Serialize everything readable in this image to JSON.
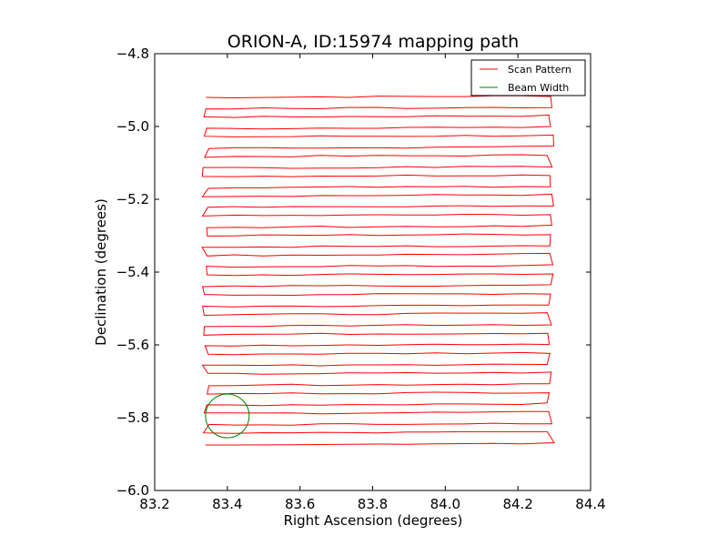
{
  "chart_data": {
    "type": "line",
    "title": "ORION-A, ID:15974 mapping path",
    "xlabel": "Right Ascension (degrees)",
    "ylabel": "Declination (degrees)",
    "xlim": [
      83.2,
      84.4
    ],
    "ylim": [
      -6.0,
      -4.8
    ],
    "xticks": [
      83.2,
      83.4,
      83.6,
      83.8,
      84.0,
      84.2,
      84.4
    ],
    "xtick_labels": [
      "83.2",
      "83.4",
      "83.6",
      "83.8",
      "84.0",
      "84.2",
      "84.4"
    ],
    "yticks": [
      -6.0,
      -5.8,
      -5.6,
      -5.4,
      -5.2,
      -5.0,
      -4.8
    ],
    "ytick_labels": [
      "−6.0",
      "−5.8",
      "−5.6",
      "−5.4",
      "−5.2",
      "−5.0",
      "−4.8"
    ],
    "grid": false,
    "legend_position": "top-right",
    "series": [
      {
        "name": "Scan Pattern",
        "color": "#ff0000",
        "kind": "raster",
        "ra_range": [
          83.34,
          84.29
        ],
        "dec_start": -4.92,
        "dec_end": -5.87,
        "rows": 36
      },
      {
        "name": "Beam Width",
        "color": "#008000",
        "kind": "circle",
        "center": [
          83.4,
          -5.795
        ],
        "radius_ra": 0.06,
        "radius_dec": 0.06
      }
    ]
  }
}
